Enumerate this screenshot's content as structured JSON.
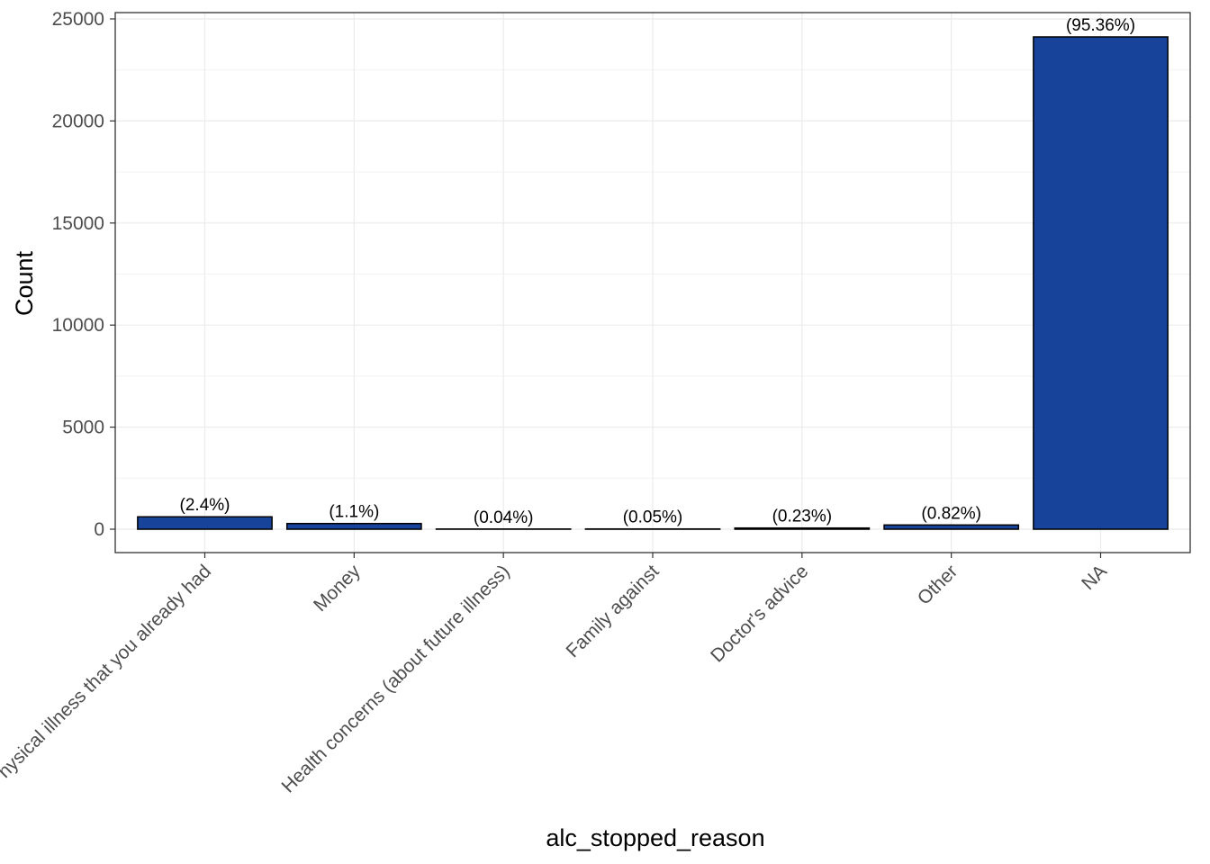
{
  "chart_data": {
    "type": "bar",
    "x_label": "alc_stopped_reason",
    "y_label": "Count",
    "categories": [
      "Physical illness that you already had",
      "Money",
      "Health concerns (about future illness)",
      "Family against",
      "Doctor's advice",
      "Other",
      "NA"
    ],
    "values": [
      607,
      278,
      10,
      13,
      58,
      207,
      24118
    ],
    "annotations": [
      "(2.4%)",
      "(1.1%)",
      "(0.04%)",
      "(0.05%)",
      "(0.23%)",
      "(0.82%)",
      "(95.36%)"
    ],
    "color": "#17439b",
    "ylim": [
      -1146,
      25309
    ],
    "yticks": [
      0,
      5000,
      10000,
      15000,
      20000,
      25000
    ],
    "grid": true
  }
}
